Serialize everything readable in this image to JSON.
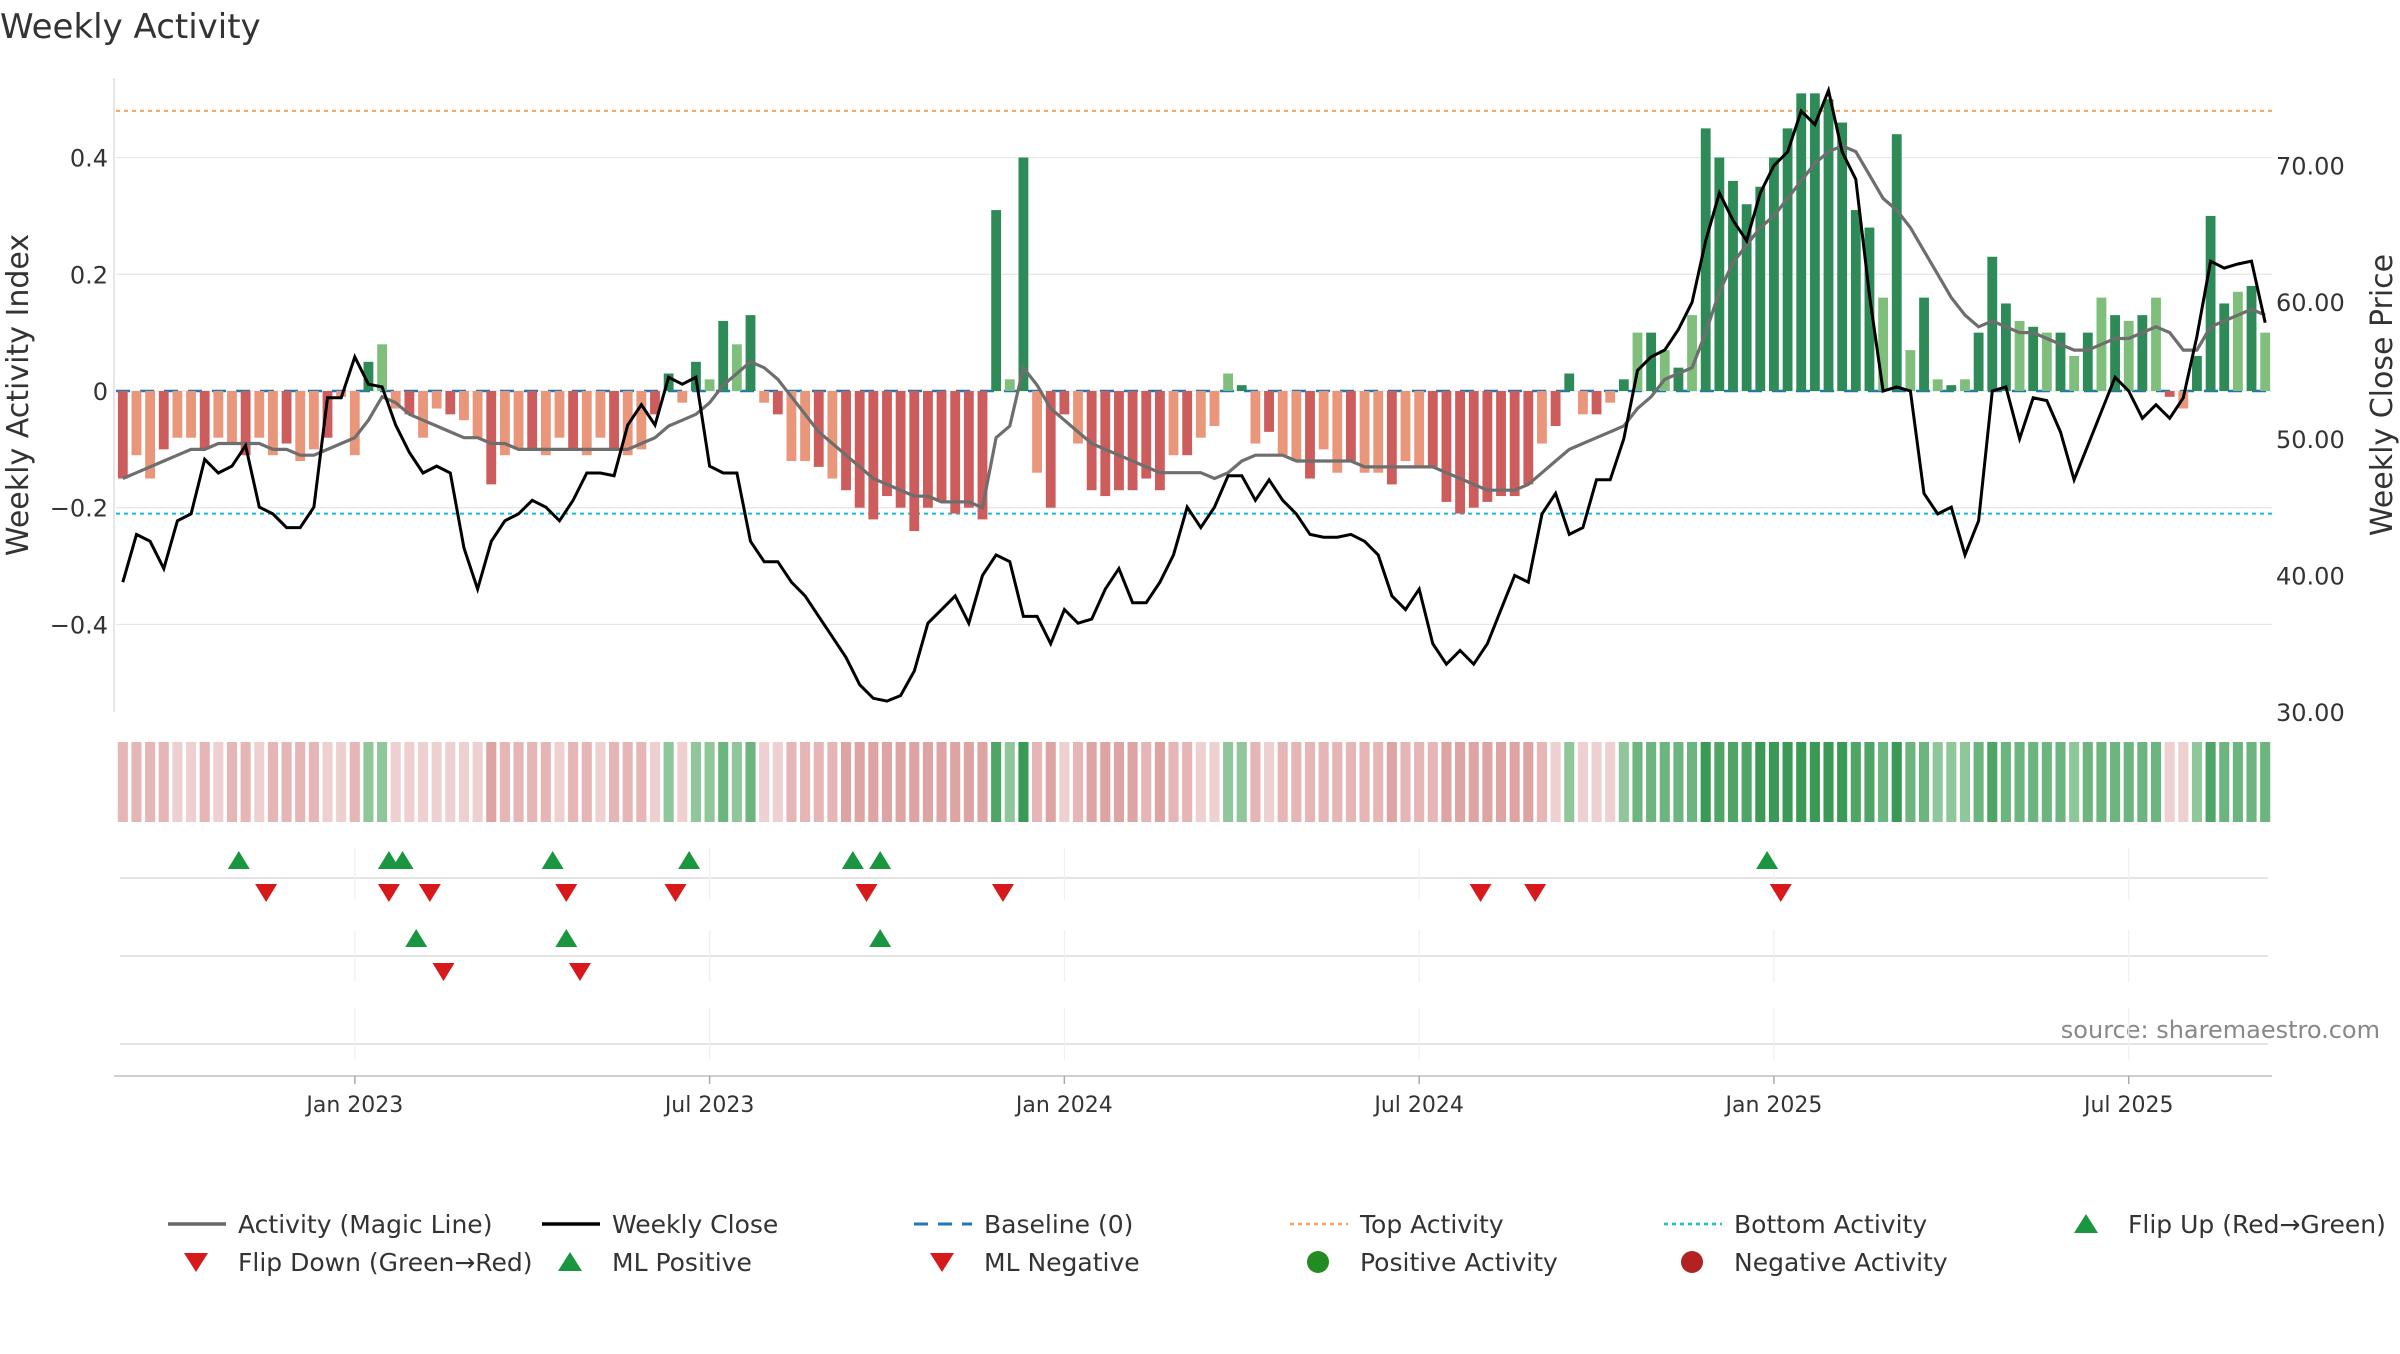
{
  "chart_data": {
    "type": "bar",
    "title": "Weekly Activity",
    "ylabel_left": "Weekly Activity Index",
    "ylabel_right": "Weekly Close Price",
    "source": "source: sharemaestro.com",
    "x_tick_labels": [
      "Jan 2023",
      "Jul 2023",
      "Jan 2024",
      "Jul 2024",
      "Jan 2025",
      "Jul 2025"
    ],
    "x_tick_weeks": [
      17,
      43,
      69,
      95,
      121,
      147
    ],
    "y_left_range": [
      -0.55,
      0.55
    ],
    "y_left_ticks": [
      0.4,
      0.2,
      0,
      -0.2,
      -0.4
    ],
    "y_left_tick_labels": [
      "0.4",
      "0.2",
      "0",
      "−0.2",
      "−0.4"
    ],
    "y_right_range": [
      30,
      77
    ],
    "y_right_ticks": [
      70,
      60,
      50,
      40,
      30
    ],
    "y_right_tick_labels": [
      "70.00",
      "60.00",
      "50.00",
      "40.00",
      "30.00"
    ],
    "top_activity": 0.48,
    "bottom_activity": -0.21,
    "baseline": 0,
    "activity": [
      -0.15,
      -0.11,
      -0.15,
      -0.1,
      -0.08,
      -0.08,
      -0.1,
      -0.08,
      -0.09,
      -0.11,
      -0.08,
      -0.11,
      -0.09,
      -0.12,
      -0.1,
      -0.08,
      -0.01,
      -0.11,
      0.05,
      0.08,
      -0.03,
      -0.04,
      -0.08,
      -0.03,
      -0.04,
      -0.05,
      -0.08,
      -0.16,
      -0.11,
      -0.1,
      -0.1,
      -0.11,
      -0.08,
      -0.1,
      -0.11,
      -0.08,
      -0.1,
      -0.11,
      -0.1,
      -0.04,
      0.03,
      -0.02,
      0.05,
      0.02,
      0.12,
      0.08,
      0.13,
      -0.02,
      -0.04,
      -0.12,
      -0.12,
      -0.13,
      -0.15,
      -0.17,
      -0.2,
      -0.22,
      -0.18,
      -0.2,
      -0.24,
      -0.2,
      -0.19,
      -0.21,
      -0.2,
      -0.22,
      0.31,
      0.02,
      0.4,
      -0.14,
      -0.2,
      -0.04,
      -0.09,
      -0.17,
      -0.18,
      -0.17,
      -0.17,
      -0.15,
      -0.17,
      -0.11,
      -0.11,
      -0.08,
      -0.06,
      0.03,
      0.01,
      -0.09,
      -0.07,
      -0.11,
      -0.12,
      -0.15,
      -0.1,
      -0.14,
      -0.12,
      -0.14,
      -0.14,
      -0.16,
      -0.12,
      -0.13,
      -0.13,
      -0.19,
      -0.21,
      -0.2,
      -0.19,
      -0.18,
      -0.18,
      -0.16,
      -0.09,
      -0.06,
      0.03,
      -0.04,
      -0.04,
      -0.02,
      0.02,
      0.1,
      0.1,
      0.07,
      0.04,
      0.13,
      0.45,
      0.4,
      0.36,
      0.32,
      0.35,
      0.4,
      0.45,
      0.51,
      0.51,
      0.5,
      0.46,
      0.31,
      0.28,
      0.16,
      0.44,
      0.07,
      0.16,
      0.02,
      0.01,
      0.02,
      0.1,
      0.23,
      0.15,
      0.12,
      0.11,
      0.1,
      0.1,
      0.06,
      0.1,
      0.16,
      0.13,
      0.12,
      0.13,
      0.16,
      -0.01,
      -0.03,
      0.06,
      0.3,
      0.15,
      0.17,
      0.18,
      0.1
    ],
    "magic_line": [
      -0.15,
      -0.14,
      -0.13,
      -0.12,
      -0.11,
      -0.1,
      -0.1,
      -0.09,
      -0.09,
      -0.09,
      -0.09,
      -0.1,
      -0.1,
      -0.11,
      -0.11,
      -0.1,
      -0.09,
      -0.08,
      -0.05,
      -0.01,
      -0.02,
      -0.04,
      -0.05,
      -0.06,
      -0.07,
      -0.08,
      -0.08,
      -0.09,
      -0.09,
      -0.1,
      -0.1,
      -0.1,
      -0.1,
      -0.1,
      -0.1,
      -0.1,
      -0.1,
      -0.1,
      -0.09,
      -0.08,
      -0.06,
      -0.05,
      -0.04,
      -0.02,
      0.01,
      0.03,
      0.05,
      0.04,
      0.02,
      -0.01,
      -0.04,
      -0.07,
      -0.09,
      -0.11,
      -0.13,
      -0.15,
      -0.16,
      -0.17,
      -0.18,
      -0.18,
      -0.19,
      -0.19,
      -0.19,
      -0.2,
      -0.08,
      -0.06,
      0.04,
      0.01,
      -0.03,
      -0.05,
      -0.07,
      -0.09,
      -0.1,
      -0.11,
      -0.12,
      -0.13,
      -0.14,
      -0.14,
      -0.14,
      -0.14,
      -0.15,
      -0.14,
      -0.12,
      -0.11,
      -0.11,
      -0.11,
      -0.12,
      -0.12,
      -0.12,
      -0.12,
      -0.12,
      -0.13,
      -0.13,
      -0.13,
      -0.13,
      -0.13,
      -0.13,
      -0.14,
      -0.15,
      -0.16,
      -0.17,
      -0.17,
      -0.17,
      -0.16,
      -0.14,
      -0.12,
      -0.1,
      -0.09,
      -0.08,
      -0.07,
      -0.06,
      -0.03,
      -0.01,
      0.02,
      0.03,
      0.04,
      0.1,
      0.17,
      0.22,
      0.25,
      0.28,
      0.3,
      0.33,
      0.36,
      0.39,
      0.41,
      0.42,
      0.41,
      0.37,
      0.33,
      0.31,
      0.28,
      0.24,
      0.2,
      0.16,
      0.13,
      0.11,
      0.12,
      0.11,
      0.1,
      0.1,
      0.09,
      0.08,
      0.07,
      0.07,
      0.08,
      0.09,
      0.09,
      0.1,
      0.11,
      0.1,
      0.07,
      0.07,
      0.11,
      0.12,
      0.13,
      0.14,
      0.13
    ],
    "weekly_close": [
      39.5,
      43,
      42.5,
      40.5,
      44,
      44.5,
      48.5,
      47.5,
      48,
      49.5,
      45,
      44.5,
      43.5,
      43.5,
      45,
      53,
      53,
      56,
      54,
      53.8,
      51,
      49,
      47.5,
      48,
      47.5,
      42,
      39,
      42.5,
      44,
      44.5,
      45.5,
      45,
      44,
      45.5,
      47.5,
      47.5,
      47.3,
      51,
      52.5,
      51,
      54.5,
      54,
      54.5,
      48,
      47.5,
      47.5,
      42.5,
      41,
      41,
      39.5,
      38.5,
      37,
      35.5,
      34,
      32,
      31,
      30.8,
      31.2,
      33,
      36.5,
      37.5,
      38.5,
      36.5,
      40,
      41.5,
      41,
      37,
      37,
      35,
      37.5,
      36.5,
      36.8,
      39,
      40.5,
      38,
      38,
      39.5,
      41.5,
      45,
      43.5,
      45,
      47.3,
      47.3,
      45.5,
      47,
      45.5,
      44.5,
      43,
      42.8,
      42.8,
      43,
      42.5,
      41.5,
      38.5,
      37.5,
      39,
      35,
      33.5,
      34.5,
      33.5,
      35,
      37.5,
      40,
      39.5,
      44.5,
      46,
      43,
      43.5,
      47,
      47,
      50,
      55,
      56,
      56.5,
      58,
      60,
      64.5,
      68,
      66,
      64.5,
      68,
      70,
      71,
      74,
      73,
      75.5,
      71,
      69,
      60.5,
      53.5,
      53.8,
      53.5,
      46,
      44.5,
      45,
      41.5,
      44,
      53.5,
      53.8,
      50,
      53,
      52.8,
      50.5,
      47,
      49.5,
      52,
      54.5,
      53.5,
      51.5,
      52.5,
      51.5,
      53,
      57.5,
      63,
      62.5,
      62.8,
      63,
      58.5
    ],
    "pos_activity_level": [
      0,
      0,
      0,
      0,
      0,
      0,
      0,
      0,
      0,
      0,
      0,
      0,
      0,
      0,
      0,
      0,
      0,
      0,
      1,
      1,
      0,
      0,
      0,
      0,
      0,
      0,
      0,
      0,
      0,
      0,
      0,
      0,
      0,
      0,
      0,
      0,
      0,
      0,
      0,
      0,
      1,
      0,
      1,
      1,
      2,
      1,
      2,
      0,
      0,
      0,
      0,
      0,
      0,
      0,
      0,
      0,
      0,
      0,
      0,
      0,
      0,
      0,
      0,
      0,
      3,
      1,
      4,
      0,
      0,
      0,
      0,
      0,
      0,
      0,
      0,
      0,
      0,
      0,
      0,
      0,
      0,
      1,
      1,
      0,
      0,
      0,
      0,
      0,
      0,
      0,
      0,
      0,
      0,
      0,
      0,
      0,
      0,
      0,
      0,
      0,
      0,
      0,
      0,
      0,
      0,
      0,
      1,
      0,
      0,
      0,
      1,
      2,
      2,
      2,
      2,
      2,
      4,
      3,
      3,
      3,
      4,
      4,
      4,
      5,
      5,
      5,
      4,
      3,
      3,
      2,
      4,
      2,
      2,
      1,
      1,
      1,
      2,
      3,
      2,
      2,
      2,
      2,
      2,
      1,
      2,
      2,
      2,
      2,
      2,
      2,
      0,
      0,
      1,
      3,
      2,
      2,
      2,
      2
    ],
    "flip_up_weeks": [
      8,
      19,
      20,
      31,
      41,
      53,
      55,
      120
    ],
    "flip_down_weeks": [
      10,
      19,
      22,
      32,
      40,
      54,
      64,
      99,
      103,
      121
    ],
    "ml_positive_weeks": [
      21,
      32,
      55
    ],
    "ml_negative_weeks": [
      23,
      33
    ],
    "legend": [
      {
        "label": "Activity (Magic Line)",
        "kind": "line",
        "color": "#666666"
      },
      {
        "label": "Weekly Close",
        "kind": "line",
        "color": "#000000"
      },
      {
        "label": "Baseline (0)",
        "kind": "dash",
        "color": "#1f77b4"
      },
      {
        "label": "Top Activity",
        "kind": "dot",
        "color": "#f4a261"
      },
      {
        "label": "Bottom Activity",
        "kind": "dot",
        "color": "#17becf"
      },
      {
        "label": "Flip Up (Red→Green)",
        "kind": "tri-up",
        "color": "#1a9641"
      },
      {
        "label": "Flip Down (Green→Red)",
        "kind": "tri-down",
        "color": "#d7191c"
      },
      {
        "label": "ML Positive",
        "kind": "tri-up",
        "color": "#1a9641"
      },
      {
        "label": "ML Negative",
        "kind": "tri-down",
        "color": "#d7191c"
      },
      {
        "label": "Positive Activity",
        "kind": "circle",
        "color": "#228b22"
      },
      {
        "label": "Negative Activity",
        "kind": "circle",
        "color": "#b22222"
      }
    ],
    "colors": {
      "pos_dark": "#2e8b57",
      "pos_light": "#7fbf7b",
      "neg_dark": "#cd5c5c",
      "neg_light": "#e9967a",
      "magic_line": "#6e6e6e",
      "close": "#000000",
      "baseline": "#1f77b4",
      "top": "#f4a261",
      "bottom": "#17becf",
      "up": "#1a9641",
      "down": "#d7191c",
      "grid": "#e6e6e6"
    }
  }
}
